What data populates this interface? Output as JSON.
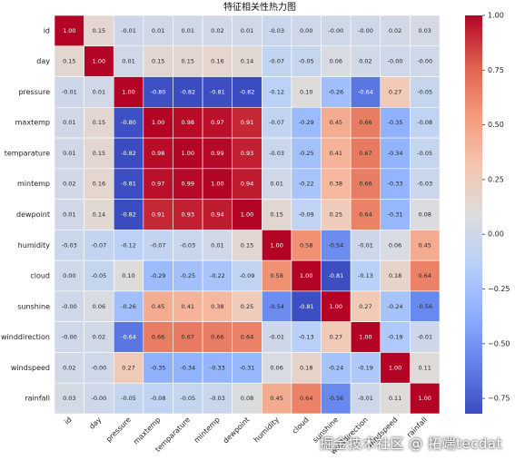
{
  "chart_data": {
    "type": "heatmap",
    "title": "特征相关性热力图",
    "variables": [
      "id",
      "day",
      "pressure",
      "maxtemp",
      "temparature",
      "mintemp",
      "dewpoint",
      "humidity",
      "cloud",
      "sunshine",
      "winddirection",
      "windspeed",
      "rainfall"
    ],
    "matrix": [
      [
        1.0,
        0.15,
        -0.01,
        0.01,
        0.01,
        0.02,
        0.01,
        -0.03,
        0.0,
        -0.0,
        -0.0,
        0.02,
        0.03
      ],
      [
        0.15,
        1.0,
        0.01,
        0.15,
        0.15,
        0.16,
        0.14,
        -0.07,
        -0.05,
        0.06,
        0.02,
        -0.0,
        -0.0
      ],
      [
        -0.01,
        0.01,
        1.0,
        -0.8,
        -0.82,
        -0.81,
        -0.82,
        -0.12,
        0.1,
        -0.26,
        -0.64,
        0.27,
        -0.05
      ],
      [
        0.01,
        0.15,
        -0.8,
        1.0,
        0.98,
        0.97,
        0.91,
        -0.07,
        -0.29,
        0.45,
        0.66,
        -0.35,
        -0.08
      ],
      [
        0.01,
        0.15,
        -0.82,
        0.98,
        1.0,
        0.99,
        0.93,
        -0.03,
        -0.25,
        0.41,
        0.67,
        -0.34,
        -0.05
      ],
      [
        0.02,
        0.16,
        -0.81,
        0.97,
        0.99,
        1.0,
        0.94,
        0.01,
        -0.22,
        0.38,
        0.66,
        -0.33,
        -0.03
      ],
      [
        0.01,
        0.14,
        -0.82,
        0.91,
        0.93,
        0.94,
        1.0,
        0.15,
        -0.09,
        0.25,
        0.64,
        -0.31,
        0.08
      ],
      [
        -0.03,
        -0.07,
        -0.12,
        -0.07,
        -0.03,
        0.01,
        0.15,
        1.0,
        0.58,
        -0.54,
        -0.01,
        0.06,
        0.45
      ],
      [
        0.0,
        -0.05,
        0.1,
        -0.29,
        -0.25,
        -0.22,
        -0.09,
        0.58,
        1.0,
        -0.81,
        -0.13,
        0.18,
        0.64
      ],
      [
        -0.0,
        0.06,
        -0.26,
        0.45,
        0.41,
        0.38,
        0.25,
        -0.54,
        -0.81,
        1.0,
        0.27,
        -0.24,
        -0.56
      ],
      [
        -0.0,
        0.02,
        -0.64,
        0.66,
        0.67,
        0.66,
        0.64,
        -0.01,
        -0.13,
        0.27,
        1.0,
        -0.19,
        -0.01
      ],
      [
        0.02,
        -0.0,
        0.27,
        -0.35,
        -0.34,
        -0.33,
        -0.31,
        0.06,
        0.18,
        -0.24,
        -0.19,
        1.0,
        0.11
      ],
      [
        0.03,
        -0.0,
        -0.05,
        -0.08,
        -0.05,
        -0.03,
        0.08,
        0.45,
        0.64,
        -0.56,
        -0.01,
        0.11,
        1.0
      ]
    ],
    "colorbar": {
      "colormap": "coolwarm",
      "range": [
        -0.82,
        1.0
      ],
      "ticks": [
        "1.00",
        "0.75",
        "0.50",
        "0.25",
        "0.00",
        "−0.25",
        "−0.50",
        "−0.75"
      ]
    },
    "annotation_format": "2 decimals"
  },
  "watermark": "掘金技术社区 @ 拓端tecdat"
}
